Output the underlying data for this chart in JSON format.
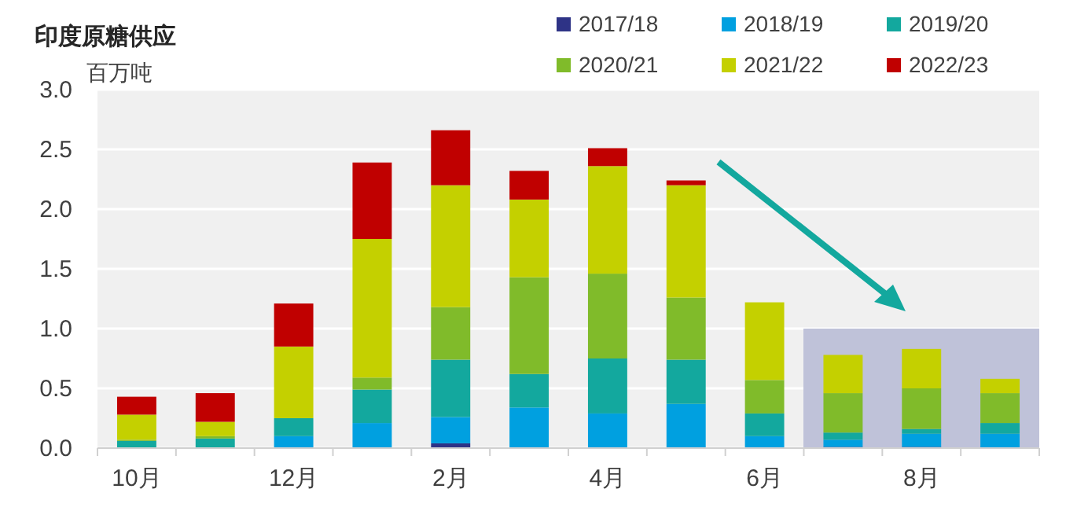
{
  "chart_data": {
    "type": "bar",
    "title": "印度原糖供应",
    "ylabel": "百万吨",
    "stacked": true,
    "categories": [
      "10月",
      null,
      "12月",
      null,
      "2月",
      null,
      "4月",
      null,
      "6月",
      null,
      "8月",
      null
    ],
    "series": [
      {
        "name": "2017/18",
        "color": "#2e3386",
        "values": [
          0,
          0,
          0,
          0,
          0.04,
          0,
          0,
          0,
          0,
          0.01,
          0.01,
          0
        ]
      },
      {
        "name": "2018/19",
        "color": "#00a0e0",
        "values": [
          0,
          0,
          0.1,
          0.21,
          0.22,
          0.34,
          0.29,
          0.37,
          0.1,
          0.06,
          0.11,
          0.12
        ]
      },
      {
        "name": "2019/20",
        "color": "#13a89e",
        "values": [
          0.06,
          0.08,
          0.15,
          0.28,
          0.48,
          0.28,
          0.46,
          0.37,
          0.19,
          0.06,
          0.04,
          0.09
        ]
      },
      {
        "name": "2020/21",
        "color": "#80bb2a",
        "values": [
          0.01,
          0.02,
          0,
          0.1,
          0.44,
          0.81,
          0.71,
          0.52,
          0.28,
          0.33,
          0.34,
          0.25
        ]
      },
      {
        "name": "2021/22",
        "color": "#c4d000",
        "values": [
          0.21,
          0.12,
          0.6,
          1.16,
          1.02,
          0.65,
          0.9,
          0.94,
          0.65,
          0.32,
          0.33,
          0.12
        ]
      },
      {
        "name": "2022/23",
        "color": "#c00000",
        "values": [
          0.15,
          0.24,
          0.36,
          0.64,
          0.46,
          0.24,
          0.15,
          0.04,
          0,
          0,
          0,
          0
        ]
      }
    ],
    "ylim": [
      0,
      3
    ],
    "yticks": [
      {
        "value": 0,
        "label": "0.0"
      },
      {
        "value": 0.5,
        "label": "0.5"
      },
      {
        "value": 1,
        "label": "1.0"
      },
      {
        "value": 1.5,
        "label": "1.5"
      },
      {
        "value": 2,
        "label": "2.0"
      },
      {
        "value": 2.5,
        "label": "2.5"
      },
      {
        "value": 3,
        "label": "3.0"
      }
    ],
    "grid": "y",
    "legend": "top right"
  }
}
